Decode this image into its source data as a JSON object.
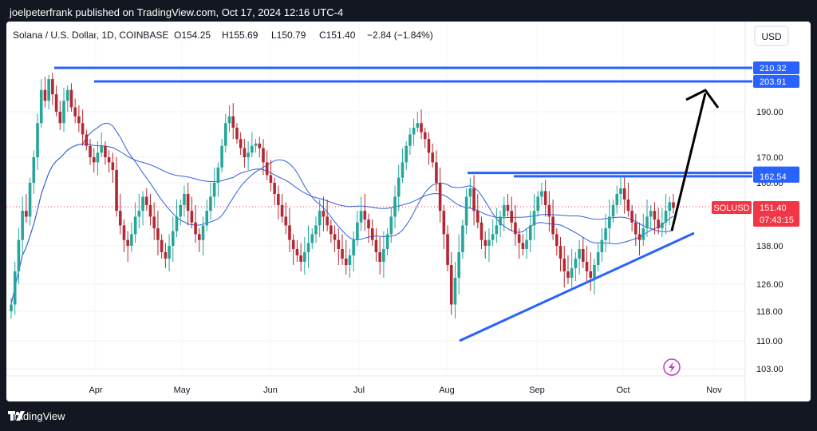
{
  "header_text": "joelpeterfrank published on TradingView.com, Oct 17, 2024 12:16 UTC-4",
  "footer_brand": "TradingView",
  "symbol_info": "Solana / U.S. Dollar, 1D, COINBASE",
  "ohlc": {
    "o": "O154.25",
    "h": "H155.69",
    "l": "L150.79",
    "c": "C151.40",
    "chg": "−2.84 (−1.84%)"
  },
  "currency_button": "USD",
  "colors": {
    "up": "#26a69a",
    "down": "#b22833",
    "level": "#2962ff",
    "ma": "#3060e0",
    "arrow": "#000000",
    "price": "#f23645"
  },
  "chart_data": {
    "type": "candlestick",
    "symbol": "SOLUSD",
    "y_axis_ticks": [
      "210.32",
      "203.91",
      "190.00",
      "170.00",
      "163.86",
      "162.54",
      "160.00",
      "151.40",
      "138.00",
      "126.00",
      "118.00",
      "110.00",
      "103.00"
    ],
    "x_axis_ticks": [
      "Apr",
      "May",
      "Jun",
      "Jul",
      "Aug",
      "Sep",
      "Oct",
      "Nov"
    ],
    "horizontal_levels": [
      {
        "label": "210.32",
        "value": 210.32
      },
      {
        "label": "203.91",
        "value": 203.91
      },
      {
        "label": "163.86",
        "value": 163.86
      },
      {
        "label": "162.54",
        "value": 162.54
      }
    ],
    "last_price": {
      "symbol": "SOLUSD",
      "value": "151.40",
      "countdown": "07:43:15"
    },
    "trendline": {
      "from": [
        "Aug 5",
        110.0
      ],
      "to": [
        "Oct 21",
        143.0
      ]
    },
    "projection_arrow": {
      "from": [
        "Oct 17",
        144.0
      ],
      "to": [
        "Oct 25",
        202.0
      ]
    },
    "candles_close": [
      120,
      130,
      140,
      150,
      148,
      160,
      170,
      185,
      200,
      195,
      205,
      198,
      190,
      185,
      195,
      200,
      192,
      188,
      185,
      180,
      175,
      170,
      168,
      172,
      175,
      170,
      168,
      165,
      150,
      145,
      140,
      138,
      142,
      148,
      150,
      155,
      152,
      148,
      144,
      140,
      136,
      134,
      138,
      143,
      148,
      152,
      156,
      150,
      146,
      142,
      140,
      145,
      150,
      155,
      160,
      166,
      175,
      185,
      188,
      183,
      178,
      174,
      170,
      172,
      175,
      176,
      174,
      168,
      163,
      160,
      156,
      152,
      148,
      145,
      140,
      137,
      135,
      133,
      136,
      139,
      142,
      145,
      150,
      148,
      145,
      142,
      140,
      137,
      134,
      132,
      135,
      140,
      146,
      150,
      147,
      144,
      140,
      136,
      133,
      137,
      142,
      148,
      155,
      162,
      168,
      175,
      180,
      183,
      185,
      181,
      178,
      172,
      168,
      160,
      150,
      142,
      132,
      120,
      128,
      136,
      145,
      155,
      158,
      150,
      146,
      140,
      138,
      140,
      142,
      145,
      148,
      152,
      150,
      146,
      142,
      139,
      137,
      140,
      145,
      150,
      155,
      157,
      152,
      148,
      142,
      138,
      134,
      130,
      128,
      131,
      134,
      137,
      133,
      130,
      128,
      132,
      136,
      140,
      144,
      148,
      152,
      156,
      158,
      154,
      150,
      146,
      142,
      140,
      144,
      148,
      150,
      147,
      144,
      146,
      150,
      153,
      151
    ]
  }
}
